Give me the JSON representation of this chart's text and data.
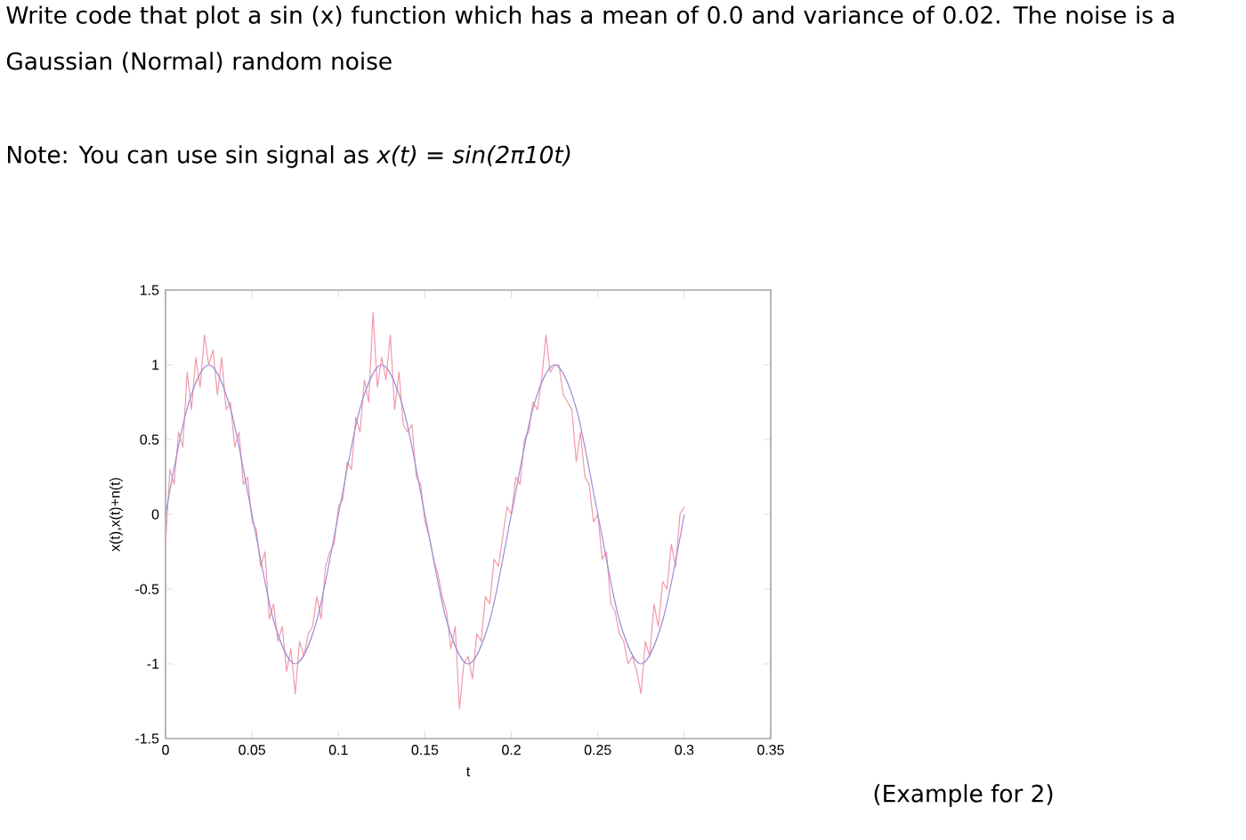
{
  "chart_data": {
    "type": "line",
    "title": "Write code that plot a sin (x) function which has a mean of 0.0 and variance of 0.02.  The noise is a Gaussian (Normal) random noise",
    "annotations": [
      "Note: You can use sin signal as *x(t) = sin(2π10t)*",
      "(Example for 2)"
    ],
    "xlabel": "t",
    "ylabel": "x(t),x(t)+n(t)",
    "x": [
      0,
      0.0025,
      0.005,
      0.0075,
      0.01,
      0.0125,
      0.015,
      0.0175,
      0.02,
      0.0225,
      0.025,
      0.0275,
      0.03,
      0.0325,
      0.035,
      0.0375,
      0.04,
      0.0425,
      0.045,
      0.0475,
      0.05,
      0.0525,
      0.055,
      0.0575,
      0.06,
      0.0625,
      0.065,
      0.0675,
      0.07,
      0.0725,
      0.075,
      0.0775,
      0.08,
      0.0825,
      0.085,
      0.0875,
      0.09,
      0.0925,
      0.095,
      0.0975,
      0.1,
      0.1025,
      0.105,
      0.1075,
      0.11,
      0.1125,
      0.115,
      0.1175,
      0.12,
      0.1225,
      0.125,
      0.1275,
      0.13,
      0.1325,
      0.135,
      0.1375,
      0.14,
      0.1425,
      0.145,
      0.1475,
      0.15,
      0.1525,
      0.155,
      0.1575,
      0.16,
      0.1625,
      0.165,
      0.1675,
      0.17,
      0.1725,
      0.175,
      0.1775,
      0.18,
      0.1825,
      0.185,
      0.1875,
      0.19,
      0.1925,
      0.195,
      0.1975,
      0.2,
      0.2025,
      0.205,
      0.2075,
      0.21,
      0.2125,
      0.215,
      0.2175,
      0.22,
      0.2225,
      0.225,
      0.2275,
      0.23,
      0.2325,
      0.235,
      0.2375,
      0.24,
      0.2425,
      0.245,
      0.2475,
      0.25,
      0.2525,
      0.255,
      0.2575,
      0.26,
      0.2625,
      0.265,
      0.2675,
      0.27,
      0.2725,
      0.275,
      0.2775,
      0.28,
      0.2825,
      0.285,
      0.2875,
      0.29,
      0.2925,
      0.295,
      0.2975,
      0.3
    ],
    "series": [
      {
        "color": "#f29aa8",
        "values": [
          -0.2,
          0.3,
          0.2,
          0.55,
          0.45,
          0.95,
          0.7,
          1.05,
          0.85,
          1.2,
          1.0,
          1.1,
          0.8,
          1.05,
          0.7,
          0.75,
          0.45,
          0.55,
          0.2,
          0.25,
          -0.05,
          -0.1,
          -0.35,
          -0.25,
          -0.7,
          -0.6,
          -0.85,
          -0.75,
          -1.05,
          -0.9,
          -1.2,
          -0.85,
          -0.95,
          -0.8,
          -0.75,
          -0.55,
          -0.7,
          -0.35,
          -0.25,
          -0.2,
          0.05,
          0.1,
          0.35,
          0.3,
          0.65,
          0.55,
          0.9,
          0.75,
          1.35,
          0.85,
          1.05,
          0.9,
          1.2,
          0.7,
          0.95,
          0.6,
          0.55,
          0.6,
          0.25,
          0.2,
          -0.05,
          -0.15,
          -0.3,
          -0.4,
          -0.55,
          -0.65,
          -0.9,
          -0.75,
          -1.3,
          -1.0,
          -0.95,
          -1.1,
          -0.8,
          -0.85,
          -0.55,
          -0.6,
          -0.3,
          -0.35,
          -0.15,
          0.05,
          0.0,
          0.25,
          0.2,
          0.5,
          0.55,
          0.75,
          0.7,
          0.9,
          1.2,
          0.95,
          1.0,
          1.0,
          0.8,
          0.75,
          0.7,
          0.35,
          0.55,
          0.25,
          0.2,
          -0.05,
          0.0,
          -0.3,
          -0.25,
          -0.6,
          -0.65,
          -0.8,
          -0.85,
          -1.0,
          -0.95,
          -1.05,
          -1.2,
          -0.85,
          -0.95,
          -0.6,
          -0.75,
          -0.45,
          -0.5,
          -0.2,
          -0.35,
          0.0,
          0.05
        ]
      },
      {
        "color": "#9c8fd6",
        "x": [
          0,
          0.0125,
          0.025,
          0.0375,
          0.05,
          0.0625,
          0.075,
          0.0875,
          0.1,
          0.1125,
          0.125,
          0.1375,
          0.15,
          0.1625,
          0.175,
          0.1875,
          0.2,
          0.2125,
          0.225,
          0.2375,
          0.25,
          0.2625,
          0.275,
          0.2875,
          0.3
        ],
        "values": [
          0,
          0.71,
          1,
          0.71,
          0,
          -0.71,
          -1,
          -0.71,
          0,
          0.71,
          1,
          0.71,
          0,
          -0.71,
          -1,
          -0.71,
          0,
          0.71,
          1,
          0.71,
          0,
          -0.71,
          -1,
          -0.71,
          0
        ]
      }
    ],
    "xlim": [
      0,
      0.35
    ],
    "xticks": [
      0,
      0.05,
      0.1,
      0.15,
      0.2,
      0.25,
      0.3,
      0.35
    ],
    "ylim": [
      -1.5,
      1.5
    ],
    "yticks": [
      -1.5,
      -1,
      -0.5,
      0,
      0.5,
      1,
      1.5
    ]
  }
}
